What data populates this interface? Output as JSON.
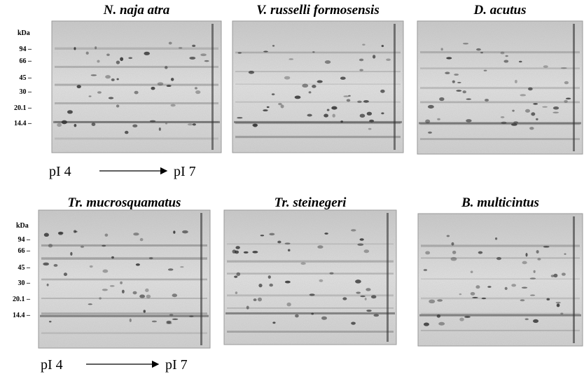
{
  "top_row": {
    "panels": [
      {
        "title": "N. naja atra"
      },
      {
        "title": "V. russelli formosensis"
      },
      {
        "title": "D. acutus"
      }
    ],
    "kda_labels": [
      "kDa",
      "94 –",
      "66 –",
      "45 –",
      "30 –",
      "20.1 –",
      "14.4 –"
    ],
    "pi_start": "pI 4",
    "pi_end": "pI 7"
  },
  "bottom_row": {
    "panels": [
      {
        "title": "Tr. mucrosquamatus"
      },
      {
        "title": "Tr. steinegeri"
      },
      {
        "title": "B. multicintus"
      }
    ],
    "kda_labels": [
      "kDa",
      "94 –",
      "66 –",
      "45 –",
      "30 –",
      "20.1 –",
      "14.4 –"
    ],
    "pi_start": "pI 4",
    "pi_end": "pI 7"
  }
}
